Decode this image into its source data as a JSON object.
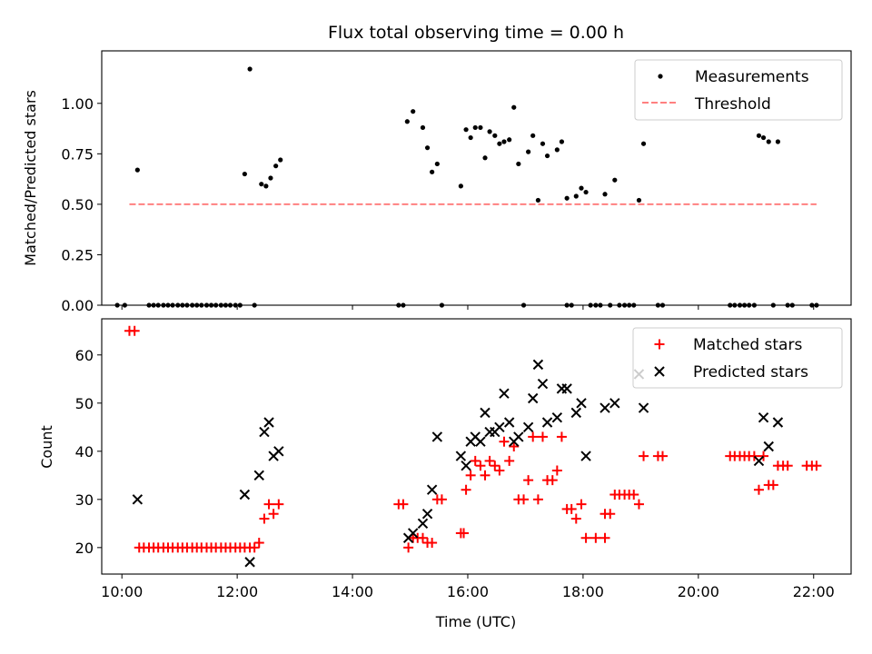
{
  "chart_data": [
    {
      "type": "scatter",
      "title": "Flux total observing time = 0.00 h",
      "xlabel": "",
      "ylabel": "Matched/Predicted stars",
      "xlim": [
        9.65,
        22.65
      ],
      "ylim": [
        0,
        1.26
      ],
      "yticks": [
        0,
        0.25,
        0.5,
        0.75,
        1.0
      ],
      "ytick_labels": [
        "0.00",
        "0.25",
        "0.50",
        "0.75",
        "1.00"
      ],
      "legend_position": "top-right",
      "series": [
        {
          "name": "Measurements",
          "marker": "dot",
          "color": "#000000",
          "points": [
            [
              10.27,
              0.67
            ],
            [
              12.13,
              0.65
            ],
            [
              12.22,
              1.17
            ],
            [
              12.42,
              0.6
            ],
            [
              12.5,
              0.59
            ],
            [
              12.58,
              0.63
            ],
            [
              12.67,
              0.69
            ],
            [
              12.75,
              0.72
            ],
            [
              14.95,
              0.91
            ],
            [
              15.05,
              0.96
            ],
            [
              15.22,
              0.88
            ],
            [
              15.3,
              0.78
            ],
            [
              15.38,
              0.66
            ],
            [
              15.47,
              0.7
            ],
            [
              15.88,
              0.59
            ],
            [
              15.97,
              0.87
            ],
            [
              16.05,
              0.83
            ],
            [
              16.13,
              0.88
            ],
            [
              16.22,
              0.88
            ],
            [
              16.3,
              0.73
            ],
            [
              16.38,
              0.86
            ],
            [
              16.47,
              0.84
            ],
            [
              16.55,
              0.8
            ],
            [
              16.63,
              0.81
            ],
            [
              16.72,
              0.82
            ],
            [
              16.8,
              0.98
            ],
            [
              16.88,
              0.7
            ],
            [
              17.05,
              0.76
            ],
            [
              17.13,
              0.84
            ],
            [
              17.22,
              0.52
            ],
            [
              17.3,
              0.8
            ],
            [
              17.38,
              0.74
            ],
            [
              17.55,
              0.77
            ],
            [
              17.63,
              0.81
            ],
            [
              17.72,
              0.53
            ],
            [
              17.88,
              0.54
            ],
            [
              17.97,
              0.58
            ],
            [
              18.05,
              0.56
            ],
            [
              18.38,
              0.55
            ],
            [
              18.55,
              0.62
            ],
            [
              18.97,
              0.52
            ],
            [
              19.05,
              0.8
            ],
            [
              21.05,
              0.84
            ],
            [
              21.13,
              0.83
            ],
            [
              21.22,
              0.81
            ],
            [
              21.38,
              0.81
            ],
            [
              9.92,
              0
            ],
            [
              10.05,
              0
            ],
            [
              10.47,
              0
            ],
            [
              10.55,
              0
            ],
            [
              10.63,
              0
            ],
            [
              10.72,
              0
            ],
            [
              10.8,
              0
            ],
            [
              10.88,
              0
            ],
            [
              10.97,
              0
            ],
            [
              11.05,
              0
            ],
            [
              11.13,
              0
            ],
            [
              11.22,
              0
            ],
            [
              11.3,
              0
            ],
            [
              11.38,
              0
            ],
            [
              11.47,
              0
            ],
            [
              11.55,
              0
            ],
            [
              11.63,
              0
            ],
            [
              11.72,
              0
            ],
            [
              11.8,
              0
            ],
            [
              11.88,
              0
            ],
            [
              11.97,
              0
            ],
            [
              12.05,
              0
            ],
            [
              12.3,
              0
            ],
            [
              14.8,
              0
            ],
            [
              14.88,
              0
            ],
            [
              15.55,
              0
            ],
            [
              16.97,
              0
            ],
            [
              17.72,
              0
            ],
            [
              17.8,
              0
            ],
            [
              18.13,
              0
            ],
            [
              18.22,
              0
            ],
            [
              18.3,
              0
            ],
            [
              18.47,
              0
            ],
            [
              18.63,
              0
            ],
            [
              18.72,
              0
            ],
            [
              18.8,
              0
            ],
            [
              18.88,
              0
            ],
            [
              19.3,
              0
            ],
            [
              19.38,
              0
            ],
            [
              20.55,
              0
            ],
            [
              20.63,
              0
            ],
            [
              20.72,
              0
            ],
            [
              20.8,
              0
            ],
            [
              20.88,
              0
            ],
            [
              20.97,
              0
            ],
            [
              21.3,
              0
            ],
            [
              21.55,
              0
            ],
            [
              21.63,
              0
            ],
            [
              21.97,
              0
            ],
            [
              22.05,
              0
            ]
          ]
        },
        {
          "name": "Threshold",
          "marker": "dashed-line",
          "color": "#ff8080",
          "points": [
            [
              10.13,
              0.5
            ],
            [
              22.05,
              0.5
            ]
          ]
        }
      ]
    },
    {
      "type": "scatter",
      "title": "",
      "xlabel": "Time (UTC)",
      "ylabel": "Count",
      "xlim": [
        9.65,
        22.65
      ],
      "ylim": [
        14.5,
        67.5
      ],
      "yticks": [
        20,
        30,
        40,
        50,
        60
      ],
      "ytick_labels": [
        "20",
        "30",
        "40",
        "50",
        "60"
      ],
      "xticks": [
        10,
        12,
        14,
        16,
        18,
        20,
        22
      ],
      "xtick_labels": [
        "10:00",
        "12:00",
        "14:00",
        "16:00",
        "18:00",
        "20:00",
        "22:00"
      ],
      "legend_position": "top-right",
      "series": [
        {
          "name": "Matched stars",
          "marker": "plus",
          "color": "#ff0000",
          "points": [
            [
              10.13,
              65
            ],
            [
              10.22,
              65
            ],
            [
              10.3,
              20
            ],
            [
              10.38,
              20
            ],
            [
              10.47,
              20
            ],
            [
              10.55,
              20
            ],
            [
              10.63,
              20
            ],
            [
              10.72,
              20
            ],
            [
              10.8,
              20
            ],
            [
              10.88,
              20
            ],
            [
              10.97,
              20
            ],
            [
              11.05,
              20
            ],
            [
              11.13,
              20
            ],
            [
              11.22,
              20
            ],
            [
              11.3,
              20
            ],
            [
              11.38,
              20
            ],
            [
              11.47,
              20
            ],
            [
              11.55,
              20
            ],
            [
              11.63,
              20
            ],
            [
              11.72,
              20
            ],
            [
              11.8,
              20
            ],
            [
              11.88,
              20
            ],
            [
              11.97,
              20
            ],
            [
              12.05,
              20
            ],
            [
              12.13,
              20
            ],
            [
              12.22,
              20
            ],
            [
              12.3,
              20
            ],
            [
              12.38,
              21
            ],
            [
              12.47,
              26
            ],
            [
              12.55,
              29
            ],
            [
              12.63,
              27
            ],
            [
              12.72,
              29
            ],
            [
              14.8,
              29
            ],
            [
              14.88,
              29
            ],
            [
              14.97,
              20
            ],
            [
              15.05,
              22
            ],
            [
              15.13,
              22
            ],
            [
              15.22,
              22
            ],
            [
              15.3,
              21
            ],
            [
              15.38,
              21
            ],
            [
              15.47,
              30
            ],
            [
              15.55,
              30
            ],
            [
              15.88,
              23
            ],
            [
              15.93,
              23
            ],
            [
              15.97,
              32
            ],
            [
              16.05,
              35
            ],
            [
              16.13,
              38
            ],
            [
              16.22,
              37
            ],
            [
              16.3,
              35
            ],
            [
              16.38,
              38
            ],
            [
              16.47,
              37
            ],
            [
              16.55,
              36
            ],
            [
              16.63,
              42
            ],
            [
              16.72,
              38
            ],
            [
              16.8,
              41
            ],
            [
              16.88,
              30
            ],
            [
              16.97,
              30
            ],
            [
              17.05,
              34
            ],
            [
              17.13,
              43
            ],
            [
              17.22,
              30
            ],
            [
              17.3,
              43
            ],
            [
              17.38,
              34
            ],
            [
              17.47,
              34
            ],
            [
              17.55,
              36
            ],
            [
              17.63,
              43
            ],
            [
              17.72,
              28
            ],
            [
              17.8,
              28
            ],
            [
              17.88,
              26
            ],
            [
              17.97,
              29
            ],
            [
              18.05,
              22
            ],
            [
              18.22,
              22
            ],
            [
              18.38,
              22
            ],
            [
              18.38,
              27
            ],
            [
              18.47,
              27
            ],
            [
              18.55,
              31
            ],
            [
              18.63,
              31
            ],
            [
              18.72,
              31
            ],
            [
              18.8,
              31
            ],
            [
              18.88,
              31
            ],
            [
              18.97,
              29
            ],
            [
              19.05,
              39
            ],
            [
              19.3,
              39
            ],
            [
              19.38,
              39
            ],
            [
              20.55,
              39
            ],
            [
              20.63,
              39
            ],
            [
              20.72,
              39
            ],
            [
              20.8,
              39
            ],
            [
              20.88,
              39
            ],
            [
              20.97,
              39
            ],
            [
              21.05,
              32
            ],
            [
              21.13,
              39
            ],
            [
              21.22,
              33
            ],
            [
              21.3,
              33
            ],
            [
              21.38,
              37
            ],
            [
              21.47,
              37
            ],
            [
              21.55,
              37
            ],
            [
              21.88,
              37
            ],
            [
              21.97,
              37
            ],
            [
              22.05,
              37
            ]
          ]
        },
        {
          "name": "Predicted stars",
          "marker": "x",
          "color": "#000000",
          "points": [
            [
              10.27,
              30
            ],
            [
              12.13,
              31
            ],
            [
              12.22,
              17
            ],
            [
              12.38,
              35
            ],
            [
              12.47,
              44
            ],
            [
              12.55,
              46
            ],
            [
              12.63,
              39
            ],
            [
              12.72,
              40
            ],
            [
              14.97,
              22
            ],
            [
              15.05,
              23
            ],
            [
              15.22,
              25
            ],
            [
              15.3,
              27
            ],
            [
              15.38,
              32
            ],
            [
              15.47,
              43
            ],
            [
              15.88,
              39
            ],
            [
              15.97,
              37
            ],
            [
              16.05,
              42
            ],
            [
              16.13,
              43
            ],
            [
              16.22,
              42
            ],
            [
              16.3,
              48
            ],
            [
              16.38,
              44
            ],
            [
              16.47,
              44
            ],
            [
              16.55,
              45
            ],
            [
              16.63,
              52
            ],
            [
              16.72,
              46
            ],
            [
              16.8,
              42
            ],
            [
              16.88,
              43
            ],
            [
              17.05,
              45
            ],
            [
              17.13,
              51
            ],
            [
              17.22,
              58
            ],
            [
              17.3,
              54
            ],
            [
              17.38,
              46
            ],
            [
              17.55,
              47
            ],
            [
              17.63,
              53
            ],
            [
              17.72,
              53
            ],
            [
              17.88,
              48
            ],
            [
              17.97,
              50
            ],
            [
              18.05,
              39
            ],
            [
              18.38,
              49
            ],
            [
              18.55,
              50
            ],
            [
              18.97,
              56
            ],
            [
              19.05,
              49
            ],
            [
              21.05,
              38
            ],
            [
              21.13,
              47
            ],
            [
              21.22,
              41
            ],
            [
              21.38,
              46
            ]
          ]
        }
      ]
    }
  ]
}
